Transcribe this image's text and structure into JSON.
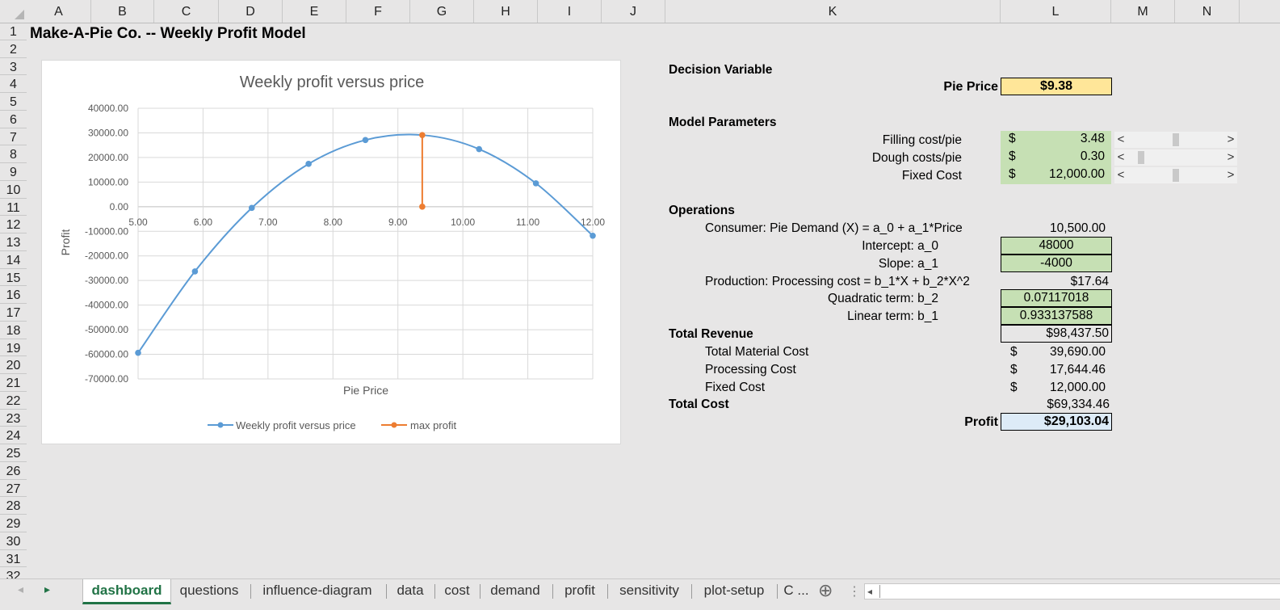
{
  "columns": [
    "A",
    "B",
    "C",
    "D",
    "E",
    "F",
    "G",
    "H",
    "I",
    "J",
    "K",
    "L",
    "M",
    "N"
  ],
  "rows": [
    "1",
    "2",
    "3",
    "4",
    "5",
    "6",
    "7",
    "8",
    "9",
    "10",
    "11",
    "12",
    "13",
    "14",
    "15",
    "16",
    "17",
    "18",
    "19",
    "20",
    "21",
    "22",
    "23",
    "24",
    "25",
    "26",
    "27",
    "28",
    "29",
    "30",
    "31",
    "32"
  ],
  "title": "Make-A-Pie Co. -- Weekly Profit Model",
  "decision": {
    "header": "Decision Variable",
    "price_label": "Pie Price",
    "price_value": "$9.38"
  },
  "params": {
    "header": "Model Parameters",
    "filling_label": "Filling cost/pie",
    "filling_currency": "$",
    "filling_value": "3.48",
    "dough_label": "Dough costs/pie",
    "dough_currency": "$",
    "dough_value": "0.30",
    "fixed_label": "Fixed Cost",
    "fixed_currency": "$",
    "fixed_value": "12,000.00",
    "scroll_left": "<",
    "scroll_right": ">",
    "scroll_levels": [
      0.5,
      0.12,
      0.5
    ]
  },
  "operations": {
    "header": "Operations",
    "consumer_label": "Consumer:  Pie Demand (X) = a_0 + a_1*Price",
    "consumer_value": "10,500.00",
    "intercept_label": "Intercept: a_0",
    "intercept_value": "48000",
    "slope_label": "Slope: a_1",
    "slope_value": "-4000",
    "production_label": "Production: Processing cost = b_1*X + b_2*X^2",
    "production_value": "$17.64",
    "quad_label": "Quadratic term: b_2",
    "quad_value": "0.07117018",
    "linear_label": "Linear term: b_1",
    "linear_value": "0.933137588",
    "total_revenue_label": "Total Revenue",
    "total_revenue_value": "$98,437.50",
    "material_label": "Total Material Cost",
    "material_currency": "$",
    "material_value": "39,690.00",
    "processing_label": "Processing Cost",
    "processing_currency": "$",
    "processing_value": "17,644.46",
    "fixedcost_label": "Fixed Cost",
    "fixedcost_currency": "$",
    "fixedcost_value": "12,000.00",
    "total_cost_label": "Total Cost",
    "total_cost_value": "$69,334.46",
    "profit_label": "Profit",
    "profit_value": "$29,103.04"
  },
  "colors": {
    "series": "#5b9bd5",
    "max": "#ed7d31",
    "accent_green": "#217346",
    "param_fill": "#c6e0b4",
    "price_fill": "#ffe699",
    "profit_fill": "#ddebf7"
  },
  "chart_data": {
    "type": "line",
    "title": "Weekly profit versus price",
    "xlabel": "Pie Price",
    "ylabel": "Profit",
    "xlim": [
      5,
      12
    ],
    "ylim": [
      -70000,
      40000
    ],
    "xticks": [
      "5.00",
      "6.00",
      "7.00",
      "8.00",
      "9.00",
      "10.00",
      "11.00",
      "12.00"
    ],
    "yticks": [
      "40000.00",
      "30000.00",
      "20000.00",
      "10000.00",
      "0.00",
      "-10000.00",
      "-20000.00",
      "-30000.00",
      "-40000.00",
      "-50000.00",
      "-60000.00",
      "-70000.00"
    ],
    "series": [
      {
        "name": "Weekly profit versus price",
        "color": "#5b9bd5",
        "x": [
          5.0,
          5.875,
          6.75,
          7.625,
          8.5,
          9.375,
          10.25,
          11.125,
          12.0
        ],
        "y": [
          -59400,
          -26300,
          -500,
          17400,
          27100,
          29103,
          23400,
          9500,
          -11800
        ]
      },
      {
        "name": "max profit",
        "color": "#ed7d31",
        "x": [
          9.375,
          9.375
        ],
        "y": [
          0,
          29103
        ]
      }
    ],
    "legend": "bottom",
    "grid": true
  },
  "tabs": [
    "dashboard",
    "questions",
    "influence-diagram",
    "data",
    "cost",
    "demand",
    "profit",
    "sensitivity",
    "plot-setup",
    "C ..."
  ],
  "active_tab": "dashboard",
  "nav": {
    "next": "▸",
    "add": "⊕",
    "more": "⋮",
    "hscroll_left": "◂"
  }
}
